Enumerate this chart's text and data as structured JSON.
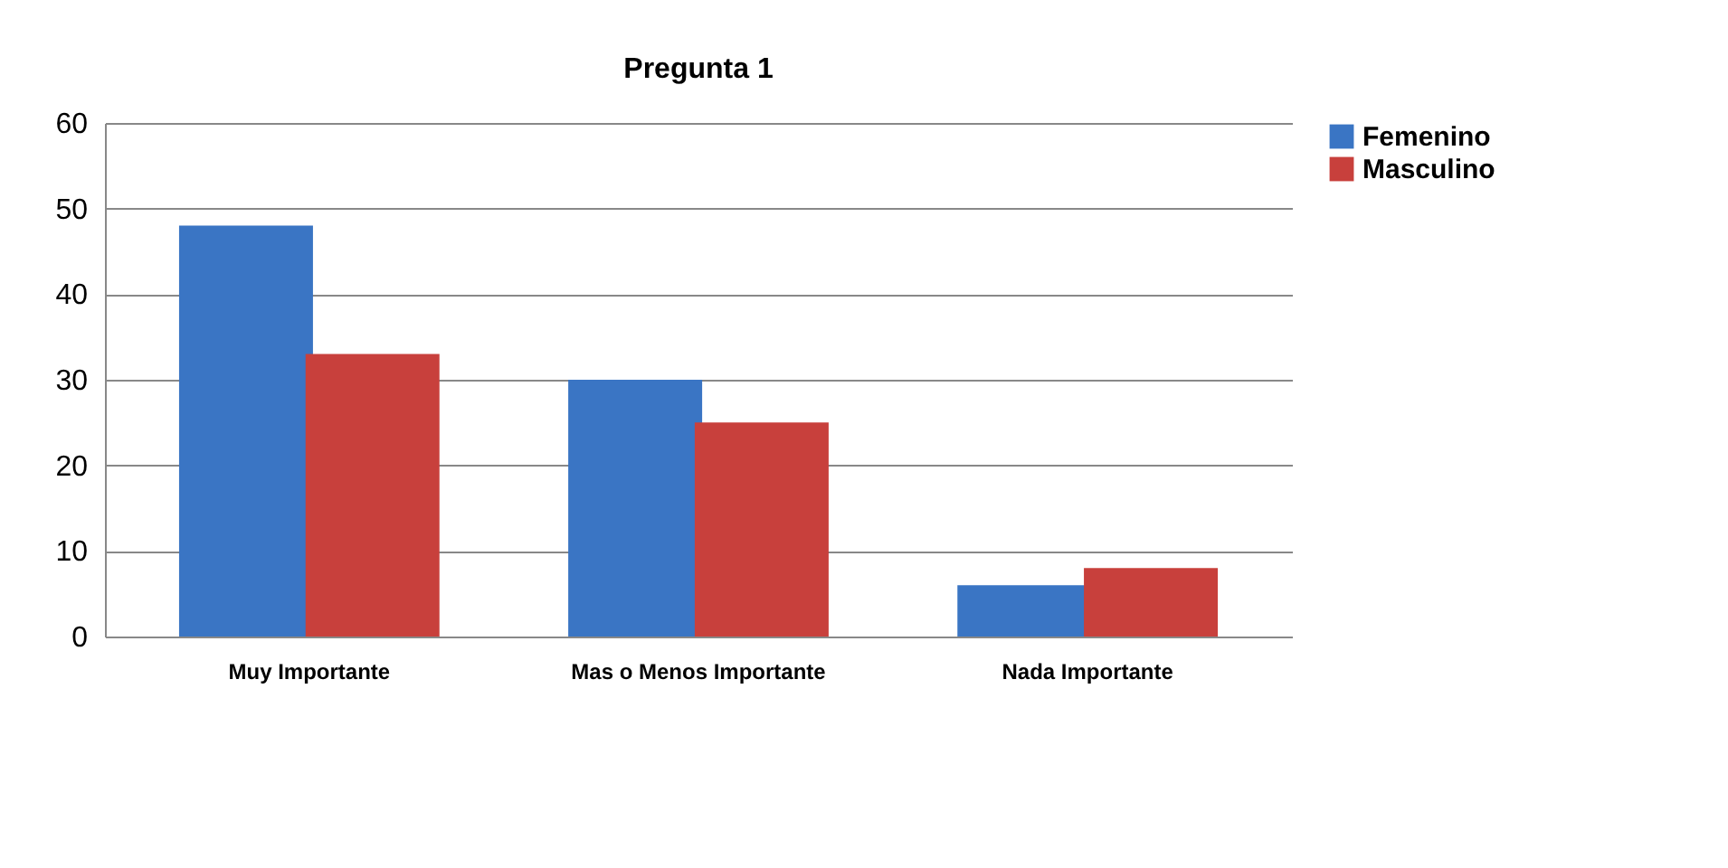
{
  "chart_data": {
    "type": "bar",
    "title": "Pregunta 1",
    "categories": [
      "Muy Importante",
      "Mas o Menos Importante",
      "Nada Importante"
    ],
    "series": [
      {
        "name": "Femenino",
        "color": "#3a75c4",
        "values": [
          48,
          30,
          6
        ]
      },
      {
        "name": "Masculino",
        "color": "#c8403c",
        "values": [
          33,
          25,
          8
        ]
      }
    ],
    "ylim": [
      0,
      60
    ],
    "yticks": [
      0,
      10,
      20,
      30,
      40,
      50,
      60
    ],
    "grid": "y",
    "legend": "right"
  }
}
